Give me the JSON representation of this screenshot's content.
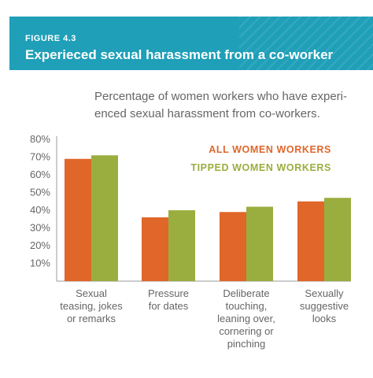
{
  "header": {
    "figure_label": "FIGURE 4.3",
    "title": "Experieced sexual harassment from a co-worker",
    "color": "#1f9fb8"
  },
  "chart_data": {
    "type": "bar",
    "subtitle_lines": [
      "Percentage of women workers who have experi-",
      "enced sexual harassment from co-workers."
    ],
    "categories": [
      [
        "Sexual",
        "teasing, jokes",
        "or remarks"
      ],
      [
        "Pressure",
        "for dates"
      ],
      [
        "Deliberate",
        "touching,",
        "leaning over,",
        "cornering or",
        "pinching"
      ],
      [
        "Sexually",
        "suggestive",
        "looks"
      ]
    ],
    "series": [
      {
        "name": "ALL WOMEN WORKERS",
        "color": "#e0662a",
        "values": [
          69,
          36,
          39,
          45
        ]
      },
      {
        "name": "TIPPED WOMEN WORKERS",
        "color": "#99ae3f",
        "values": [
          71,
          40,
          42,
          47
        ]
      }
    ],
    "y_ticks": [
      "80%",
      "70%",
      "60%",
      "50%",
      "40%",
      "30%",
      "20%",
      "10%"
    ],
    "ylim": [
      0,
      80
    ],
    "grid": false,
    "legend_position": "top-right"
  }
}
